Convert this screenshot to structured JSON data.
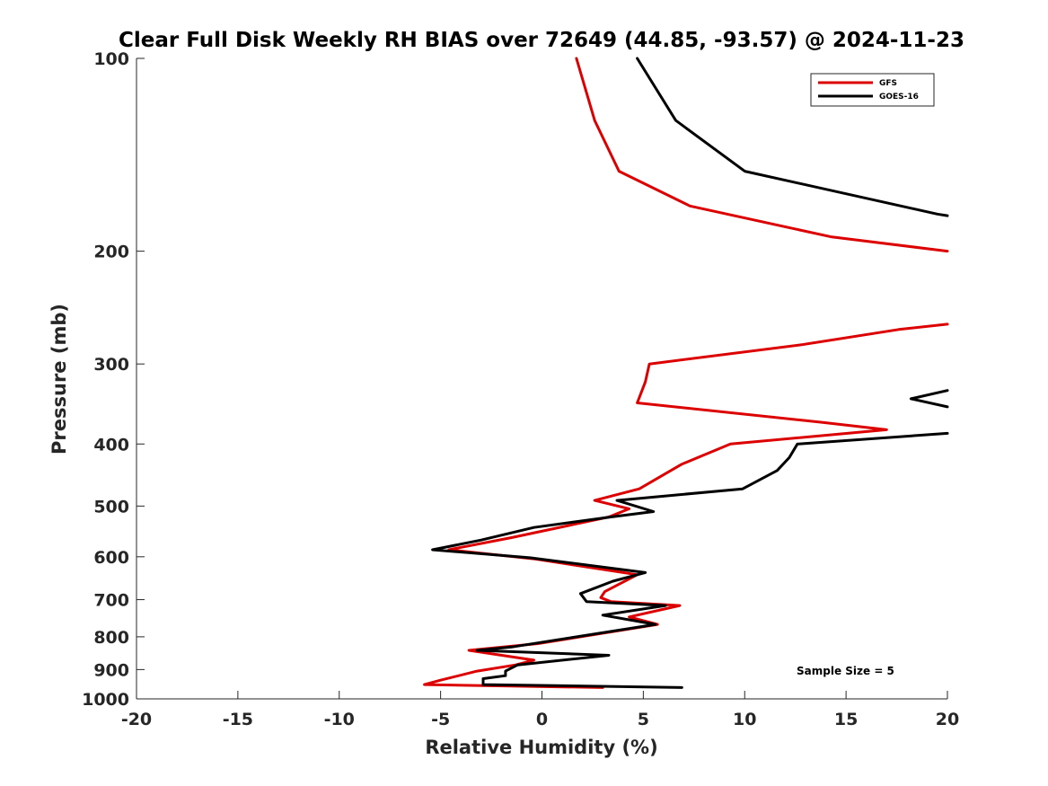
{
  "chart_data": {
    "type": "line",
    "title": "Clear Full Disk Weekly RH BIAS over 72649 (44.85, -93.57) @ 2024-11-23",
    "xlabel": "Relative Humidity (%)",
    "ylabel": "Pressure (mb)",
    "xlim": [
      -20,
      20
    ],
    "ylim": [
      100,
      1000
    ],
    "y_scale": "log",
    "y_reversed": true,
    "x_ticks": [
      -20,
      -15,
      -10,
      -5,
      0,
      5,
      10,
      15,
      20
    ],
    "x_tick_labels": [
      "-20",
      "-15",
      "-10",
      "-5",
      "0",
      "5",
      "10",
      "15",
      "20"
    ],
    "y_ticks": [
      100,
      200,
      300,
      400,
      500,
      600,
      700,
      800,
      900,
      1000
    ],
    "y_tick_labels": [
      "100",
      "200",
      "300",
      "400",
      "500",
      "600",
      "700",
      "800",
      "900",
      "1000"
    ],
    "grid": false,
    "legend_position": "top-right",
    "annotation": "Sample Size = 5",
    "series": [
      {
        "name": "GFS",
        "color": "#dd0000",
        "points": [
          [
            1.7,
            100
          ],
          [
            2.6,
            125
          ],
          [
            3.8,
            150
          ],
          [
            7.3,
            170
          ],
          [
            14.3,
            190
          ],
          [
            20.0,
            200
          ],
          [
            null,
            null
          ],
          [
            20.0,
            260
          ],
          [
            17.6,
            265
          ],
          [
            12.8,
            280
          ],
          [
            5.3,
            300
          ],
          [
            5.1,
            320
          ],
          [
            4.7,
            345
          ],
          [
            13.8,
            370
          ],
          [
            17.0,
            380
          ],
          [
            9.3,
            400
          ],
          [
            6.9,
            430
          ],
          [
            4.8,
            470
          ],
          [
            2.6,
            490
          ],
          [
            4.3,
            505
          ],
          [
            3.3,
            520
          ],
          [
            -1.5,
            560
          ],
          [
            -4.6,
            585
          ],
          [
            -0.3,
            605
          ],
          [
            4.7,
            640
          ],
          [
            3.1,
            680
          ],
          [
            2.9,
            695
          ],
          [
            3.4,
            705
          ],
          [
            6.8,
            715
          ],
          [
            4.3,
            745
          ],
          [
            5.7,
            765
          ],
          [
            -0.2,
            820
          ],
          [
            -3.6,
            840
          ],
          [
            -0.4,
            870
          ],
          [
            -1.3,
            885
          ],
          [
            -3.2,
            905
          ],
          [
            -5.0,
            935
          ],
          [
            -5.8,
            950
          ],
          [
            3.0,
            960
          ]
        ]
      },
      {
        "name": "GOES-16",
        "color": "#000000",
        "points": [
          [
            4.7,
            100
          ],
          [
            6.6,
            125
          ],
          [
            10.0,
            150
          ],
          [
            19.5,
            175
          ],
          [
            20.0,
            176
          ],
          [
            null,
            null
          ],
          [
            20.0,
            330
          ],
          [
            18.2,
            340
          ],
          [
            20.0,
            350
          ],
          [
            null,
            null
          ],
          [
            20.0,
            385
          ],
          [
            12.6,
            400
          ],
          [
            12.2,
            420
          ],
          [
            11.6,
            440
          ],
          [
            9.9,
            470
          ],
          [
            3.7,
            490
          ],
          [
            5.5,
            510
          ],
          [
            3.4,
            520
          ],
          [
            -0.4,
            540
          ],
          [
            -3.0,
            565
          ],
          [
            -5.4,
            585
          ],
          [
            -0.6,
            602
          ],
          [
            5.1,
            635
          ],
          [
            3.5,
            655
          ],
          [
            1.9,
            685
          ],
          [
            2.2,
            705
          ],
          [
            6.1,
            715
          ],
          [
            3.0,
            740
          ],
          [
            5.6,
            765
          ],
          [
            -1.5,
            830
          ],
          [
            -3.2,
            840
          ],
          [
            3.3,
            855
          ],
          [
            -1.2,
            885
          ],
          [
            -1.8,
            905
          ],
          [
            -1.8,
            920
          ],
          [
            -2.9,
            930
          ],
          [
            -2.9,
            950
          ],
          [
            6.9,
            960
          ]
        ]
      }
    ]
  }
}
